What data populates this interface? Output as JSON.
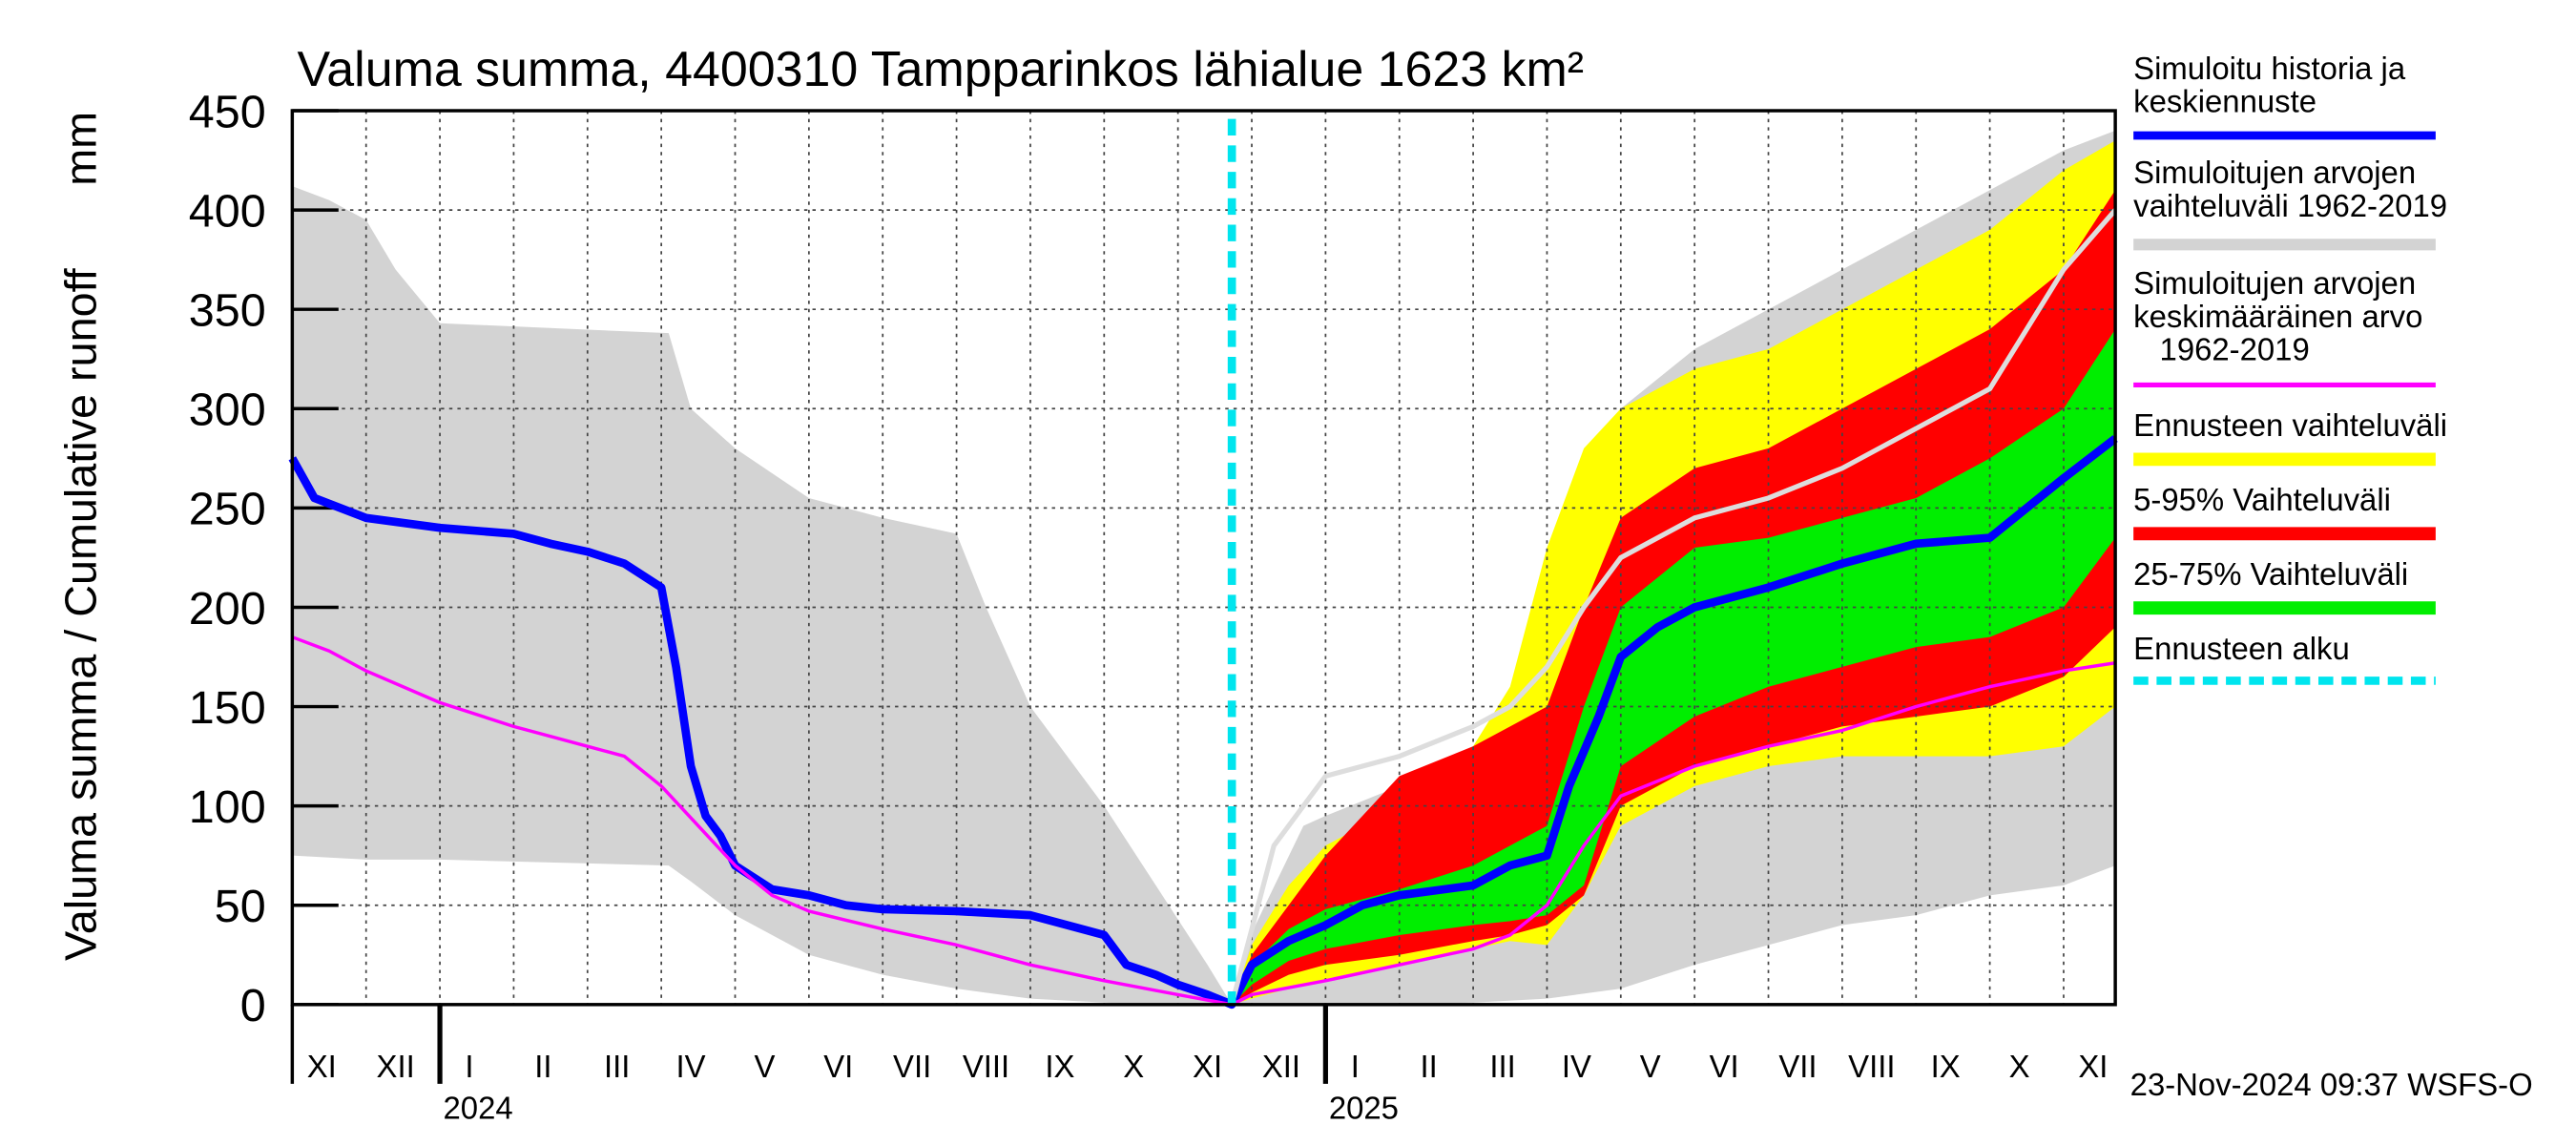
{
  "chart_data": {
    "type": "line",
    "title": "Valuma summa, 4400310 Tampparinkos lähialue 1623 km²",
    "y_label": "Valuma summa / Cumulative runoff",
    "y_unit": "mm",
    "footer": "23-Nov-2024 09:37 WSFS-O",
    "ylim": [
      0,
      450
    ],
    "yticks": [
      0,
      50,
      100,
      150,
      200,
      250,
      300,
      350,
      400,
      450
    ],
    "xlim": [
      0,
      24.7
    ],
    "xticks": [
      {
        "value": 0.4,
        "label": "XI"
      },
      {
        "value": 1.4,
        "label": "XII"
      },
      {
        "value": 2.4,
        "label": "I"
      },
      {
        "value": 3.4,
        "label": "II"
      },
      {
        "value": 4.4,
        "label": "III"
      },
      {
        "value": 5.4,
        "label": "IV"
      },
      {
        "value": 6.4,
        "label": "V"
      },
      {
        "value": 7.4,
        "label": "VI"
      },
      {
        "value": 8.4,
        "label": "VII"
      },
      {
        "value": 9.4,
        "label": "VIII"
      },
      {
        "value": 10.4,
        "label": "IX"
      },
      {
        "value": 11.4,
        "label": "X"
      },
      {
        "value": 12.4,
        "label": "XI"
      },
      {
        "value": 13.4,
        "label": "XII"
      },
      {
        "value": 14.4,
        "label": "I"
      },
      {
        "value": 15.4,
        "label": "II"
      },
      {
        "value": 16.4,
        "label": "III"
      },
      {
        "value": 17.4,
        "label": "IV"
      },
      {
        "value": 18.4,
        "label": "V"
      },
      {
        "value": 19.4,
        "label": "VI"
      },
      {
        "value": 20.4,
        "label": "VII"
      },
      {
        "value": 21.4,
        "label": "VIII"
      },
      {
        "value": 22.4,
        "label": "IX"
      },
      {
        "value": 23.4,
        "label": "X"
      },
      {
        "value": 24.4,
        "label": "XI"
      }
    ],
    "year_ticks": [
      {
        "value": 2,
        "label": "2024"
      },
      {
        "value": 14,
        "label": "2025"
      }
    ],
    "grid": true,
    "bands": [
      {
        "name": "Simuloitujen arvojen\nvaihteluväli 1962-2019",
        "color": "#d3d3d3",
        "x": [
          0,
          0.5,
          1,
          1.4,
          2,
          5.1,
          5.4,
          6,
          7,
          8,
          9,
          9.4,
          10,
          11,
          11.7,
          12.4,
          12.73,
          13.05,
          13.7,
          14,
          15,
          16,
          17,
          17.4,
          18,
          19,
          20,
          21,
          22,
          23,
          24,
          24.7
        ],
        "upper": [
          412,
          405,
          395,
          370,
          343,
          338,
          300,
          280,
          255,
          245,
          237,
          200,
          150,
          100,
          60,
          20,
          0,
          40,
          90,
          95,
          110,
          120,
          180,
          260,
          300,
          330,
          350,
          370,
          390,
          410,
          430,
          440
        ],
        "lower": [
          75,
          74,
          73,
          73,
          73,
          70,
          62,
          45,
          25,
          15,
          8,
          6,
          3,
          1,
          0,
          0,
          0,
          0,
          0,
          0,
          0,
          1,
          3,
          5,
          8,
          20,
          30,
          40,
          45,
          55,
          60,
          70
        ]
      },
      {
        "name": "Ennusteen vaihteluväli",
        "color": "#ffff00",
        "x": [
          12.73,
          13,
          13.5,
          14,
          15,
          16,
          16.5,
          17,
          17.5,
          18,
          19,
          20,
          21,
          22,
          23,
          24,
          24.7
        ],
        "upper": [
          0,
          30,
          60,
          80,
          100,
          130,
          160,
          230,
          280,
          300,
          320,
          330,
          350,
          370,
          390,
          420,
          435
        ],
        "lower": [
          0,
          3,
          8,
          12,
          20,
          28,
          32,
          30,
          55,
          90,
          110,
          120,
          125,
          125,
          125,
          130,
          150
        ]
      },
      {
        "name": "5-95% Vaihteluväli",
        "color": "#ff0000",
        "x": [
          12.73,
          13,
          13.5,
          14,
          15,
          16,
          16.5,
          17,
          17.5,
          18,
          19,
          20,
          21,
          22,
          23,
          24,
          24.7
        ],
        "upper": [
          0,
          25,
          50,
          75,
          115,
          130,
          140,
          150,
          200,
          245,
          270,
          280,
          300,
          320,
          340,
          370,
          410
        ],
        "lower": [
          0,
          6,
          15,
          20,
          25,
          32,
          35,
          40,
          55,
          100,
          120,
          130,
          140,
          145,
          150,
          165,
          190
        ]
      },
      {
        "name": "25-75% Vaihteluväli",
        "color": "#00ee00",
        "x": [
          12.73,
          13,
          13.5,
          14,
          15,
          16,
          16.5,
          17,
          17.5,
          18,
          19,
          20,
          21,
          22,
          23,
          24,
          24.7
        ],
        "upper": [
          0,
          20,
          38,
          48,
          58,
          70,
          80,
          90,
          150,
          200,
          230,
          235,
          245,
          255,
          275,
          300,
          340
        ],
        "lower": [
          0,
          10,
          22,
          28,
          35,
          40,
          42,
          45,
          60,
          120,
          145,
          160,
          170,
          180,
          185,
          200,
          235
        ]
      }
    ],
    "series": [
      {
        "name": "Simuloitu historia ja\nkeskiennuste",
        "color": "#0000ff",
        "x": [
          0,
          0.3,
          1,
          2,
          3,
          3.5,
          4,
          4.5,
          5,
          5.2,
          5.4,
          5.6,
          5.8,
          6,
          6.5,
          7,
          7.5,
          8,
          9,
          10,
          10.5,
          11,
          11.3,
          11.7,
          12,
          12.4,
          12.73,
          13,
          13.5,
          14,
          14.5,
          15,
          16,
          16.5,
          17,
          17.3,
          17.7,
          18,
          18.5,
          19,
          20,
          21,
          22,
          23,
          23.5,
          24,
          24.7
        ],
        "values": [
          275,
          255,
          245,
          240,
          237,
          232,
          228,
          222,
          210,
          170,
          120,
          95,
          85,
          70,
          58,
          55,
          50,
          48,
          47,
          45,
          40,
          35,
          20,
          15,
          10,
          5,
          0,
          20,
          32,
          40,
          50,
          55,
          60,
          70,
          75,
          110,
          145,
          175,
          190,
          200,
          210,
          222,
          232,
          235,
          250,
          265,
          285
        ]
      },
      {
        "name": "Simuloitujen arvojen\nkeskimääräinen arvo\n   1962-2019",
        "color": "#ff00ff",
        "x": [
          0,
          0.5,
          1,
          2,
          3,
          4,
          4.5,
          5,
          5.5,
          6,
          6.5,
          7,
          8,
          9,
          10,
          11,
          12,
          12.73,
          13,
          14,
          15,
          16,
          16.5,
          17,
          17.5,
          18,
          19,
          20,
          21,
          22,
          23,
          24,
          24.7
        ],
        "values": [
          185,
          178,
          168,
          152,
          140,
          130,
          125,
          110,
          90,
          70,
          55,
          47,
          38,
          30,
          20,
          12,
          5,
          0,
          5,
          12,
          20,
          28,
          35,
          50,
          80,
          105,
          120,
          130,
          138,
          150,
          160,
          168,
          172
        ]
      },
      {
        "color": "#dddddd",
        "x": [
          12.73,
          13.3,
          13.7,
          14,
          15,
          16,
          16.5,
          17,
          17.5,
          18,
          19,
          20,
          21,
          22,
          23,
          23.5,
          24,
          24.7
        ],
        "values": [
          0,
          80,
          100,
          115,
          125,
          140,
          150,
          170,
          200,
          225,
          245,
          255,
          270,
          290,
          310,
          340,
          370,
          400
        ]
      }
    ],
    "forecast_start": {
      "name": "Ennusteen alku",
      "x": 12.73,
      "color": "#00e5ee"
    }
  }
}
